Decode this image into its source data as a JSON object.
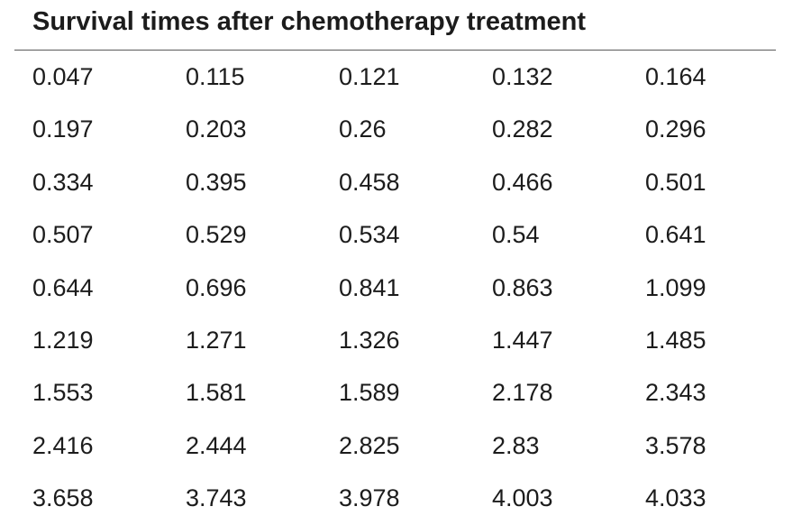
{
  "title": "Survival times after chemotherapy treatment",
  "rows": [
    [
      "0.047",
      "0.115",
      "0.121",
      "0.132",
      "0.164"
    ],
    [
      "0.197",
      "0.203",
      "0.26",
      "0.282",
      "0.296"
    ],
    [
      "0.334",
      "0.395",
      "0.458",
      "0.466",
      "0.501"
    ],
    [
      "0.507",
      "0.529",
      "0.534",
      "0.54",
      "0.641"
    ],
    [
      "0.644",
      "0.696",
      "0.841",
      "0.863",
      "1.099"
    ],
    [
      "1.219",
      "1.271",
      "1.326",
      "1.447",
      "1.485"
    ],
    [
      "1.553",
      "1.581",
      "1.589",
      "2.178",
      "2.343"
    ],
    [
      "2.416",
      "2.444",
      "2.825",
      "2.83",
      "3.578"
    ],
    [
      "3.658",
      "3.743",
      "3.978",
      "4.003",
      "4.033"
    ]
  ]
}
